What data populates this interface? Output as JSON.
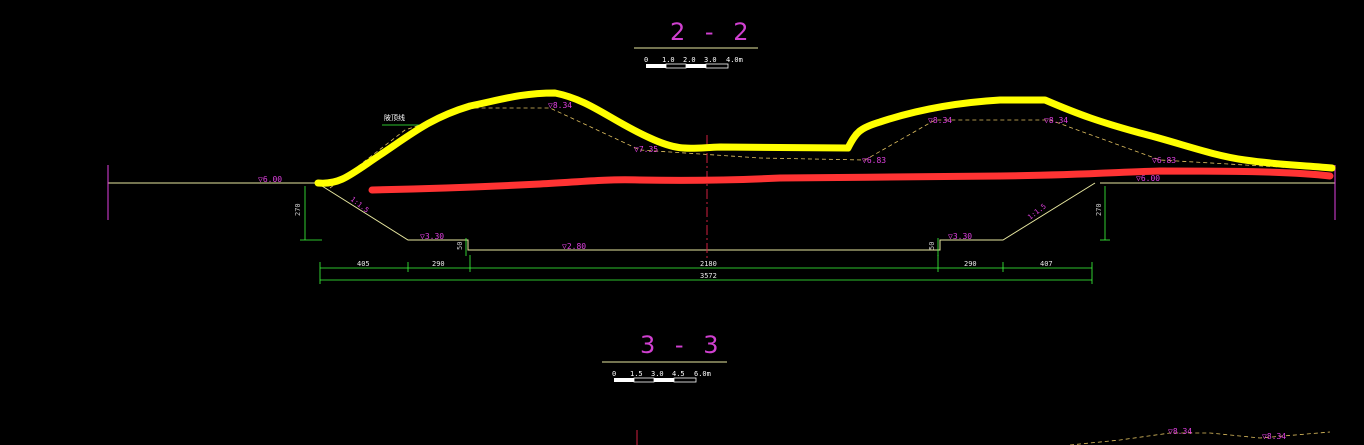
{
  "section_2": {
    "title": "2 - 2",
    "scale": {
      "ticks": [
        "0",
        "1.0",
        "2.0",
        "3.0",
        "4.0m"
      ]
    },
    "label_note": "陂顶线",
    "elevations": {
      "left_ground": "▽6.00",
      "berm_left_top": "▽8.34",
      "berm_left_low": "▽7.35",
      "berm_mid_low": "▽6.83",
      "berm_right_top1": "▽8.34",
      "berm_right_top2": "▽8.34",
      "berm_right_low": "▽6.83",
      "right_ground": "▽6.00",
      "bottom_left": "▽3.30",
      "bottom_right": "▽3.30",
      "channel_mid": "▽2.80"
    },
    "slopes": {
      "left": "1:1.5",
      "right": "1:1.5"
    },
    "vertical_dims": {
      "left": "270",
      "right": "270",
      "step_left": "50",
      "step_right": "50"
    },
    "horizontal_dims": {
      "segments": [
        "405",
        "290",
        "2180",
        "290",
        "407"
      ],
      "total": "3572"
    }
  },
  "section_3": {
    "title": "3 - 3",
    "scale": {
      "ticks": [
        "0",
        "1.5",
        "3.0",
        "4.5",
        "6.0m"
      ]
    },
    "fragments": [
      "▽8.34",
      "▽8.34"
    ]
  },
  "colors": {
    "yellow_markup": "#ffff00",
    "red_markup": "#ff3333",
    "magenta_text": "#e040e0",
    "green_dim": "#3cff3c",
    "section_line": "#e8e8a0",
    "centerline": "#d02040"
  }
}
